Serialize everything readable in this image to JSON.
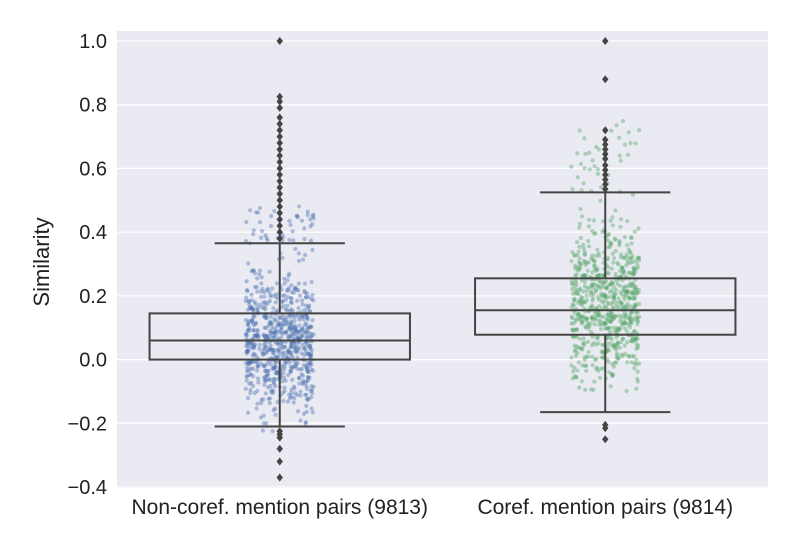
{
  "chart_data": {
    "type": "box",
    "title": "",
    "xlabel": "",
    "ylabel": "Similarity",
    "ylim": [
      -0.4,
      1.0
    ],
    "yticks": [
      -0.4,
      -0.2,
      0.0,
      0.2,
      0.4,
      0.6,
      0.8,
      1.0
    ],
    "ytick_labels": [
      "−0.4",
      "−0.2",
      "0.0",
      "0.2",
      "0.4",
      "0.6",
      "0.8",
      "1.0"
    ],
    "grid": true,
    "legend": "none",
    "background": "#eaeaf2",
    "categories": [
      "Non-coref. mention pairs (9813)",
      "Coref. mention pairs (9814)"
    ],
    "boxes": [
      {
        "category": "Non-coref. mention pairs (9813)",
        "color": "#4c72b0",
        "q1": 0.0,
        "median": 0.06,
        "q3": 0.145,
        "whisker_low": -0.21,
        "whisker_high": 0.365,
        "fliers": [
          1.0,
          0.825,
          0.81,
          0.79,
          0.76,
          0.74,
          0.72,
          0.7,
          0.68,
          0.66,
          0.64,
          0.62,
          0.6,
          0.58,
          0.56,
          0.54,
          0.52,
          0.5,
          0.48,
          0.46,
          0.44,
          0.42,
          0.4,
          0.38,
          -0.225,
          -0.235,
          -0.245,
          -0.28,
          -0.32,
          -0.37
        ],
        "strip_range": [
          -0.23,
          0.6
        ]
      },
      {
        "category": "Coref. mention pairs (9814)",
        "color": "#55a868",
        "q1": 0.078,
        "median": 0.155,
        "q3": 0.255,
        "whisker_low": -0.165,
        "whisker_high": 0.525,
        "fliers": [
          1.0,
          0.88,
          0.72,
          0.69,
          0.675,
          0.66,
          0.645,
          0.63,
          0.61,
          0.595,
          0.58,
          0.565,
          0.55,
          0.535,
          -0.205,
          -0.215,
          -0.25
        ],
        "strip_range": [
          -0.1,
          1.0
        ]
      }
    ]
  }
}
